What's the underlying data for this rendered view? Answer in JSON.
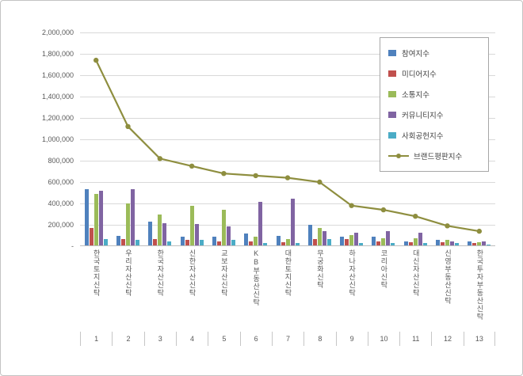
{
  "chart_data": {
    "type": "bar",
    "subtype": "combo-bar-line",
    "title": "",
    "grid": true,
    "legend_position": "top-right",
    "ylim": [
      0,
      2000000
    ],
    "ytick_step": 200000,
    "ytick_labels": [
      "-",
      "200,000",
      "400,000",
      "600,000",
      "800,000",
      "1,000,000",
      "1,200,000",
      "1,400,000",
      "1,600,000",
      "1,800,000",
      "2,000,000"
    ],
    "categories": [
      "한국토지신탁",
      "우리자산신탁",
      "한국자산신탁",
      "신한자산신탁",
      "교보자산신탁",
      "KB부동산신탁",
      "대한토지신탁",
      "무궁화신탁",
      "하나자산신탁",
      "코리아신탁",
      "대신자산신탁",
      "신영부동산신탁",
      "한국투자부동산신탁"
    ],
    "category_numbers": [
      "1",
      "2",
      "3",
      "4",
      "5",
      "6",
      "7",
      "8",
      "9",
      "10",
      "11",
      "12",
      "13"
    ],
    "series": [
      {
        "key": "participation",
        "name": "참여지수",
        "type": "bar",
        "color": "#4F81BD",
        "values": [
          530000,
          90000,
          220000,
          80000,
          80000,
          110000,
          90000,
          190000,
          80000,
          80000,
          40000,
          50000,
          40000
        ]
      },
      {
        "key": "media",
        "name": "미디어지수",
        "type": "bar",
        "color": "#C0504D",
        "values": [
          160000,
          60000,
          60000,
          50000,
          40000,
          40000,
          30000,
          60000,
          60000,
          40000,
          30000,
          30000,
          20000
        ]
      },
      {
        "key": "communication",
        "name": "소통지수",
        "type": "bar",
        "color": "#9BBB59",
        "values": [
          480000,
          390000,
          290000,
          370000,
          330000,
          80000,
          60000,
          160000,
          100000,
          70000,
          70000,
          50000,
          30000
        ]
      },
      {
        "key": "community",
        "name": "커뮤니티지수",
        "type": "bar",
        "color": "#8064A2",
        "values": [
          510000,
          530000,
          210000,
          200000,
          180000,
          410000,
          440000,
          130000,
          120000,
          130000,
          120000,
          40000,
          40000
        ]
      },
      {
        "key": "social-contribution",
        "name": "사회공헌지수",
        "type": "bar",
        "color": "#4BACC6",
        "values": [
          60000,
          50000,
          40000,
          50000,
          50000,
          20000,
          20000,
          60000,
          20000,
          20000,
          20000,
          20000,
          10000
        ]
      },
      {
        "key": "brand-reputation",
        "name": "브랜드평판지수",
        "type": "line",
        "color": "#8E8E3F",
        "values": [
          1740000,
          1120000,
          820000,
          750000,
          680000,
          660000,
          640000,
          600000,
          380000,
          340000,
          280000,
          190000,
          140000
        ]
      }
    ]
  }
}
